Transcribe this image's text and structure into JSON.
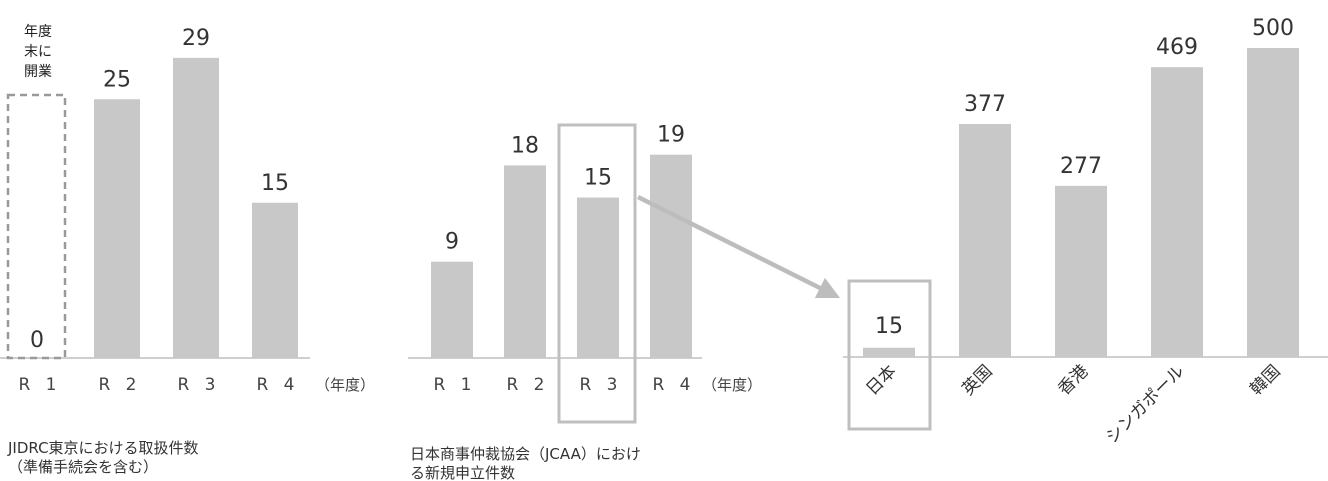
{
  "colors": {
    "bar": "#c8c8c9",
    "axis": "#bfbfbf",
    "highlight": "#bfbfbf",
    "text": "#333333"
  },
  "chart_data": [
    {
      "type": "bar",
      "categories": [
        "R 1",
        "R 2",
        "R 3",
        "R 4"
      ],
      "values": [
        0,
        25,
        29,
        15
      ],
      "unit": "（年度）",
      "annotation": [
        "年度",
        "末に",
        "開業"
      ],
      "caption": [
        "JIDRC東京における取扱件数",
        "（準備手続会を含む）"
      ]
    },
    {
      "type": "bar",
      "categories": [
        "R 1",
        "R 2",
        "R 3",
        "R 4"
      ],
      "values": [
        9,
        18,
        15,
        19
      ],
      "unit": "（年度）",
      "highlight": "R 3",
      "caption": [
        "日本商事仲裁協会（JCAA）におけ",
        "る新規申立件数"
      ]
    },
    {
      "type": "bar",
      "categories": [
        "日本",
        "英国",
        "香港",
        "シンガポール",
        "韓国"
      ],
      "values": [
        15,
        377,
        277,
        469,
        500
      ],
      "highlight": "日本"
    }
  ]
}
